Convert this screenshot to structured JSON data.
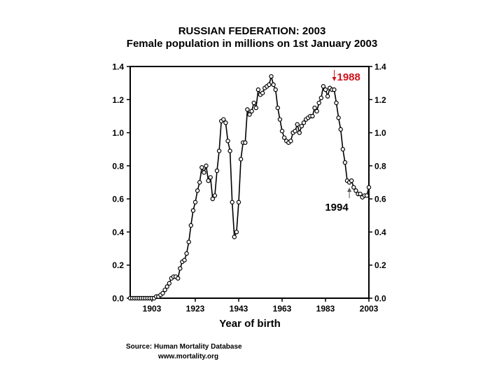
{
  "title_line1": "RUSSIAN FEDERATION: 2003",
  "title_line2": "Female population in millions on 1st January 2003",
  "source_line1": "Source: Human Mortality Database",
  "source_line2": "www.mortality.org",
  "chart_data": {
    "type": "line",
    "title": "RUSSIAN FEDERATION: 2003",
    "subtitle": "Female population in millions on 1st January 2003",
    "xlabel": "Year of birth",
    "ylabel": "",
    "xlim": [
      1893,
      2003
    ],
    "ylim": [
      0,
      1.4
    ],
    "xticks": [
      1903,
      1923,
      1943,
      1963,
      1983,
      2003
    ],
    "yticks": [
      0.0,
      0.2,
      0.4,
      0.6,
      0.8,
      1.0,
      1.2,
      1.4
    ],
    "ytick_labels": [
      "0.0",
      "0.2",
      "0.4",
      "0.6",
      "0.8",
      "1.0",
      "1.2",
      "1.4"
    ],
    "y_axis_right_duplicate": true,
    "grid": false,
    "marker": "open-circle",
    "annotations": [
      {
        "text": "1988",
        "x": 1988,
        "color": "#d0121b",
        "arrow": "down"
      },
      {
        "text": "1994",
        "x": 1994,
        "color": "#000000",
        "arrow": "up"
      }
    ],
    "series": [
      {
        "x": [
          1893,
          1894,
          1895,
          1896,
          1897,
          1898,
          1899,
          1900,
          1901,
          1902,
          1903,
          1904,
          1905,
          1906,
          1907,
          1908,
          1909,
          1910,
          1911,
          1912,
          1913,
          1914,
          1915,
          1916,
          1917,
          1918,
          1919,
          1920,
          1921,
          1922,
          1923,
          1924,
          1925,
          1926,
          1927,
          1928,
          1929,
          1930,
          1931,
          1932,
          1933,
          1934,
          1935,
          1936,
          1937,
          1938,
          1939,
          1940,
          1941,
          1942,
          1943,
          1944,
          1945,
          1946,
          1947,
          1948,
          1949,
          1950,
          1951,
          1952,
          1953,
          1954,
          1955,
          1956,
          1957,
          1958,
          1959,
          1960,
          1961,
          1962,
          1963,
          1964,
          1965,
          1966,
          1967,
          1968,
          1969,
          1970,
          1971,
          1972,
          1973,
          1974,
          1975,
          1976,
          1977,
          1978,
          1979,
          1980,
          1981,
          1982,
          1983,
          1984,
          1985,
          1986,
          1987,
          1988,
          1989,
          1990,
          1991,
          1992,
          1993,
          1994,
          1995,
          1996,
          1997,
          1998,
          1999,
          2000,
          2001,
          2002,
          2003
        ],
        "values": [
          0.0,
          0.0,
          0.0,
          0.0,
          0.0,
          0.0,
          0.0,
          0.0,
          0.0,
          0.0,
          0.0,
          0.0,
          0.01,
          0.01,
          0.02,
          0.03,
          0.05,
          0.07,
          0.09,
          0.12,
          0.13,
          0.13,
          0.12,
          0.18,
          0.22,
          0.23,
          0.27,
          0.34,
          0.44,
          0.53,
          0.58,
          0.65,
          0.7,
          0.79,
          0.76,
          0.8,
          0.71,
          0.73,
          0.6,
          0.62,
          0.77,
          0.89,
          1.07,
          1.08,
          1.06,
          0.95,
          0.89,
          0.58,
          0.37,
          0.4,
          0.58,
          0.84,
          0.94,
          0.94,
          1.14,
          1.11,
          1.13,
          1.18,
          1.15,
          1.26,
          1.23,
          1.24,
          1.27,
          1.28,
          1.29,
          1.34,
          1.29,
          1.26,
          1.15,
          1.08,
          1.01,
          0.97,
          0.95,
          0.94,
          0.95,
          1.0,
          1.01,
          1.05,
          1.0,
          1.04,
          1.06,
          1.08,
          1.09,
          1.1,
          1.1,
          1.15,
          1.13,
          1.18,
          1.21,
          1.28,
          1.26,
          1.22,
          1.27,
          1.26,
          1.26,
          1.18,
          1.09,
          1.02,
          0.9,
          0.82,
          0.71,
          0.7,
          0.71,
          0.67,
          0.65,
          0.63,
          0.63,
          0.61,
          0.62,
          0.62,
          0.67
        ]
      }
    ]
  }
}
